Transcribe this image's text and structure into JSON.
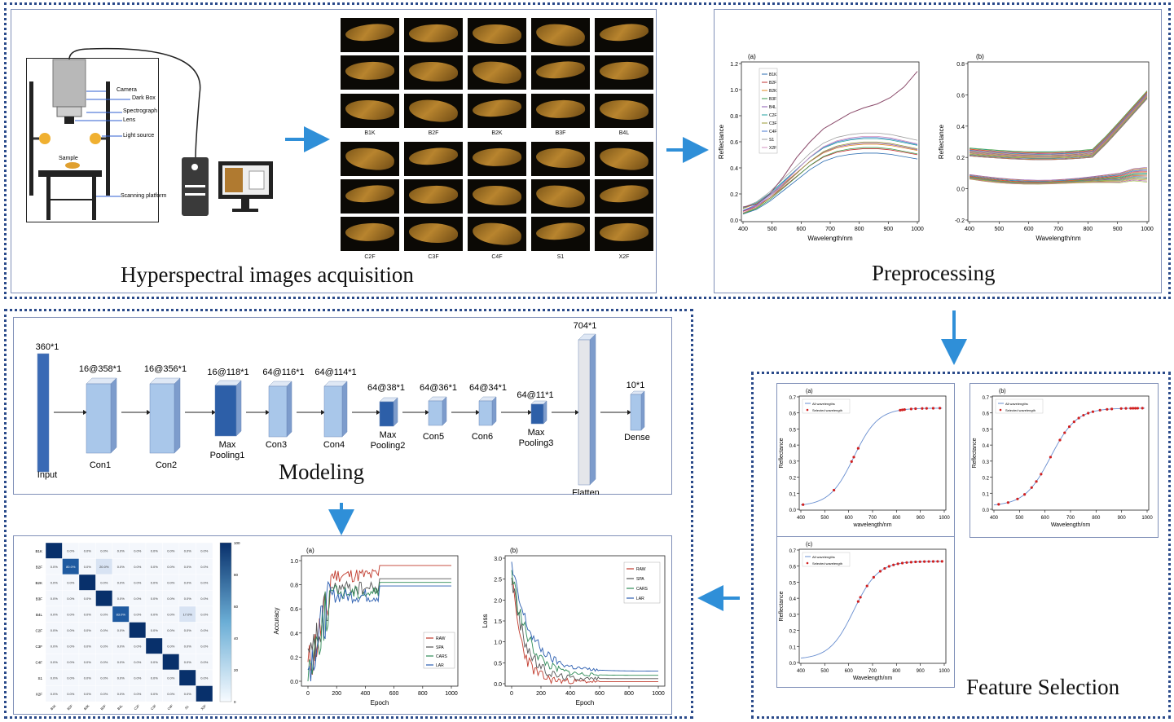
{
  "sections": {
    "acquisition_title": "Hyperspectral images acquisition",
    "preprocessing_title": "Preprocessing",
    "feature_selection_title": "Feature Selection",
    "modeling_title": "Modeling"
  },
  "setup": {
    "labels": [
      "Camera",
      "Dark Box",
      "Spectrograph",
      "Lens",
      "Light source",
      "Sample",
      "Scanning platform"
    ]
  },
  "grades_row1": [
    "B1K",
    "B2F",
    "B2K",
    "B3F",
    "B4L"
  ],
  "grades_row2": [
    "C2F",
    "C3F",
    "C4F",
    "S1",
    "X2F"
  ],
  "preprocessing": {
    "chart_a": {
      "panel": "(a)",
      "xlabel": "Wavelength/nm",
      "ylabel": "Reflectance",
      "xticks": [
        "400",
        "500",
        "600",
        "700",
        "800",
        "900",
        "1000"
      ],
      "yticks": [
        "0.0",
        "0.2",
        "0.4",
        "0.6",
        "0.8",
        "1.0",
        "1.2"
      ],
      "legend": [
        "B1K",
        "B2F",
        "B2K",
        "B3F",
        "B4L",
        "C2F",
        "C3F",
        "C4F",
        "S1",
        "X2F"
      ]
    },
    "chart_b": {
      "panel": "(b)",
      "xlabel": "Wavelength/nm",
      "ylabel": "Reflectance",
      "xticks": [
        "400",
        "500",
        "600",
        "700",
        "800",
        "900",
        "1000"
      ],
      "yticks": [
        "-0.2",
        "0.0",
        "0.2",
        "0.4",
        "0.6",
        "0.8"
      ]
    }
  },
  "feature_selection": {
    "legend": [
      "All wavelengths",
      "Selected wavelength"
    ],
    "ylabel": "Reflectance",
    "xticks": [
      "400",
      "500",
      "600",
      "700",
      "800",
      "900",
      "1000"
    ],
    "yticks": [
      "0.0",
      "0.1",
      "0.2",
      "0.3",
      "0.4",
      "0.5",
      "0.6",
      "0.7"
    ],
    "chart_a": {
      "panel": "(a)",
      "xlabel": "wavelength/nm"
    },
    "chart_b": {
      "panel": "(b)",
      "xlabel": "Wavelength/nm"
    },
    "chart_c": {
      "panel": "(c)",
      "xlabel": "Wavelength/nm"
    }
  },
  "cnn": {
    "layers": [
      {
        "top": "360*1",
        "bottom": "Input"
      },
      {
        "top": "16@358*1",
        "bottom": "Con1"
      },
      {
        "top": "16@356*1",
        "bottom": "Con2"
      },
      {
        "top": "16@118*1",
        "bottom": "Max Pooling1"
      },
      {
        "top": "64@116*1",
        "bottom": "Con3"
      },
      {
        "top": "64@114*1",
        "bottom": "Con4"
      },
      {
        "top": "64@38*1",
        "bottom": "Max Pooling2"
      },
      {
        "top": "64@36*1",
        "bottom": "Con5"
      },
      {
        "top": "64@34*1",
        "bottom": "Con6"
      },
      {
        "top": "64@11*1",
        "bottom": "Max Pooling3"
      },
      {
        "top": "704*1",
        "bottom": "Flatten"
      },
      {
        "top": "10*1",
        "bottom": "Dense"
      }
    ]
  },
  "confusion_matrix": {
    "classes": [
      "B1K",
      "B2F",
      "B2K",
      "B3F",
      "B4L",
      "C2F",
      "C3F",
      "C4F",
      "S1",
      "X2F"
    ],
    "offdiag_value": "0.0%",
    "highlights": [
      {
        "row": 1,
        "col": 1,
        "value": "80.0%"
      },
      {
        "row": 1,
        "col": 3,
        "value": "20.0%"
      },
      {
        "row": 4,
        "col": 4,
        "value": "83.0%"
      },
      {
        "row": 4,
        "col": 8,
        "value": "17.0%"
      }
    ],
    "colorbar_ticks": [
      "100",
      "80",
      "60",
      "40",
      "20",
      "0"
    ]
  },
  "training": {
    "series": [
      "RAW",
      "SPA",
      "CARS",
      "LAR"
    ],
    "colors": {
      "RAW": "#c0392b",
      "SPA": "#555555",
      "CARS": "#2e8b57",
      "LAR": "#2a5db0"
    },
    "accuracy": {
      "panel": "(a)",
      "xlabel": "Epoch",
      "ylabel": "Accuracy",
      "xticks": [
        "0",
        "200",
        "400",
        "600",
        "800",
        "1000"
      ],
      "yticks": [
        "0.0",
        "0.2",
        "0.4",
        "0.6",
        "0.8",
        "1.0"
      ]
    },
    "loss": {
      "panel": "(b)",
      "xlabel": "Epoch",
      "ylabel": "Loss",
      "xticks": [
        "0",
        "200",
        "400",
        "600",
        "800",
        "1000"
      ],
      "yticks": [
        "0.0",
        "0.5",
        "1.0",
        "1.5",
        "2.0",
        "2.5",
        "3.0"
      ]
    }
  },
  "colors": {
    "frame": "#2a4a8a",
    "arrow": "#2f8fd8",
    "cnn_light": "#a9c7ea",
    "cnn_dark": "#2d5fa8"
  }
}
